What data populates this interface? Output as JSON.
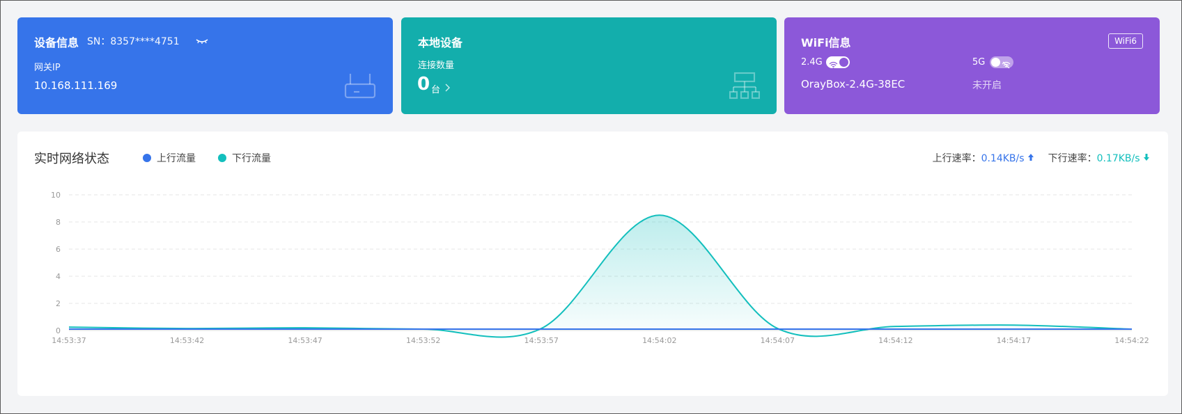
{
  "device": {
    "title": "设备信息",
    "sn": "SN：8357****4751",
    "gateway_label": "网关IP",
    "gateway_ip": "10.168.111.169",
    "icon": "router-icon"
  },
  "local": {
    "title": "本地设备",
    "count_label": "连接数量",
    "count": "0",
    "unit": "台",
    "icon": "network-topology-icon"
  },
  "wifi": {
    "title": "WiFi信息",
    "badge": "WiFi6",
    "band_24": {
      "label": "2.4G",
      "enabled": true,
      "ssid": "OrayBox-2.4G-38EC"
    },
    "band_5": {
      "label": "5G",
      "enabled": false,
      "status": "未开启"
    }
  },
  "network": {
    "title": "实时网络状态",
    "legend_up": "上行流量",
    "legend_down": "下行流量",
    "up_rate_label": "上行速率：",
    "up_rate_value": "0.14KB/s",
    "down_rate_label": "下行速率：",
    "down_rate_value": "0.17KB/s"
  },
  "colors": {
    "blue_card": "#3674ea",
    "teal_card": "#13aeac",
    "purple_card": "#8c58d9",
    "upload": "#3674ea",
    "download": "#13bfbd"
  },
  "chart_data": {
    "type": "area",
    "x": [
      "14:53:37",
      "14:53:42",
      "14:53:47",
      "14:53:52",
      "14:53:57",
      "14:54:02",
      "14:54:07",
      "14:54:12",
      "14:54:17",
      "14:54:22"
    ],
    "ylim": [
      0,
      10
    ],
    "yticks": [
      0,
      2,
      4,
      6,
      8,
      10
    ],
    "grid": true,
    "series": [
      {
        "name": "上行流量",
        "color": "#3674ea",
        "values": [
          0.1,
          0.1,
          0.1,
          0.1,
          0.1,
          0.1,
          0.1,
          0.1,
          0.1,
          0.1
        ]
      },
      {
        "name": "下行流量",
        "color": "#13bfbd",
        "values": [
          0.25,
          0.15,
          0.2,
          0.1,
          0.15,
          8.5,
          0.15,
          0.3,
          0.4,
          0.1
        ]
      }
    ]
  }
}
